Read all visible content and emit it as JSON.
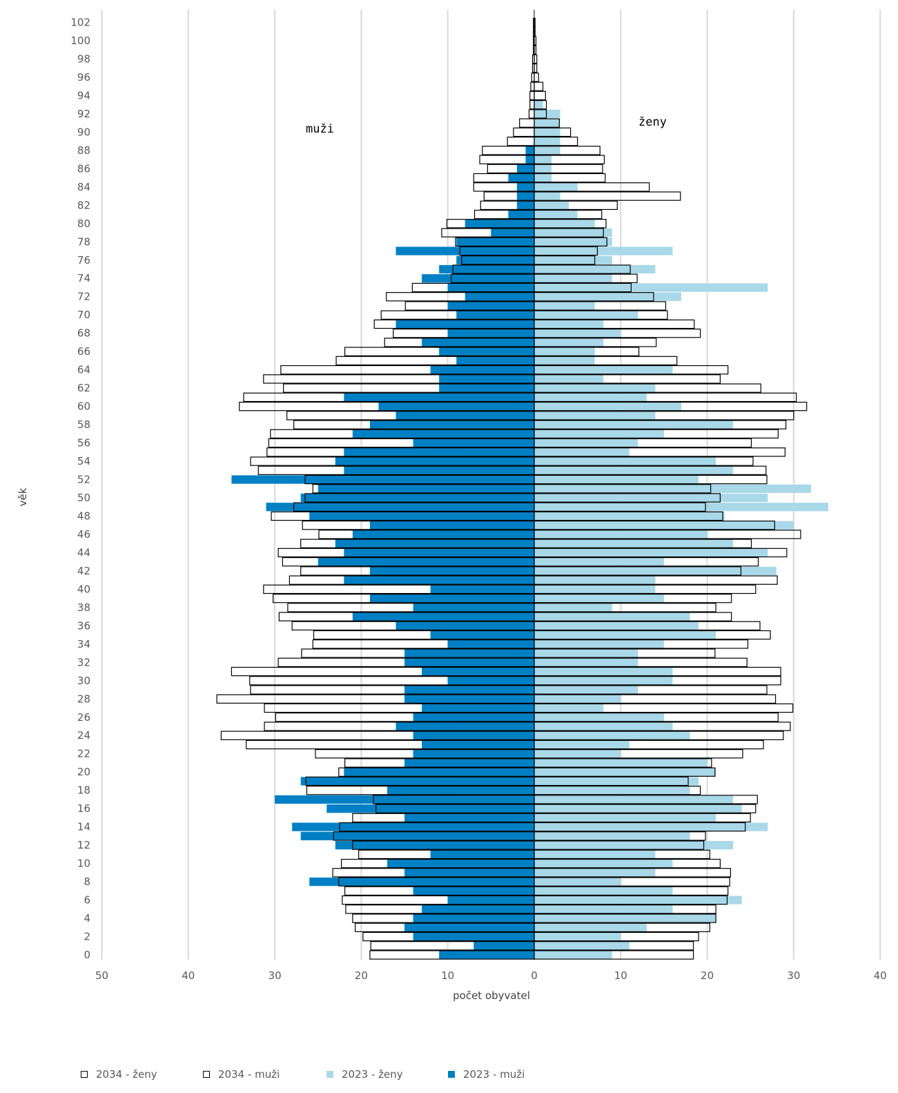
{
  "chart_data": {
    "type": "bar",
    "orientation": "population-pyramid",
    "ylabel": "věk",
    "xlabel": "počet obyvatel",
    "left_group_label": "muži",
    "right_group_label": "ženy",
    "x_ticks_left": [
      "50",
      "40",
      "30",
      "20",
      "10",
      "0"
    ],
    "x_ticks_right": [
      "10",
      "20",
      "30",
      "40"
    ],
    "xlim": [
      -50,
      40
    ],
    "grid": "vertical",
    "legend_position": "bottom",
    "ages": [
      0,
      1,
      2,
      3,
      4,
      5,
      6,
      7,
      8,
      9,
      10,
      11,
      12,
      13,
      14,
      15,
      16,
      17,
      18,
      19,
      20,
      21,
      22,
      23,
      24,
      25,
      26,
      27,
      28,
      29,
      30,
      31,
      32,
      33,
      34,
      35,
      36,
      37,
      38,
      39,
      40,
      41,
      42,
      43,
      44,
      45,
      46,
      47,
      48,
      49,
      50,
      51,
      52,
      53,
      54,
      55,
      56,
      57,
      58,
      59,
      60,
      61,
      62,
      63,
      64,
      65,
      66,
      67,
      68,
      69,
      70,
      71,
      72,
      73,
      74,
      75,
      76,
      77,
      78,
      79,
      80,
      81,
      82,
      83,
      84,
      85,
      86,
      87,
      88,
      89,
      90,
      91,
      92,
      93,
      94,
      95,
      96,
      97,
      98,
      99,
      100,
      101,
      102
    ],
    "y_tick_labels": [
      "0",
      "2",
      "4",
      "6",
      "8",
      "10",
      "12",
      "14",
      "16",
      "18",
      "20",
      "22",
      "24",
      "26",
      "28",
      "30",
      "32",
      "34",
      "36",
      "38",
      "40",
      "42",
      "44",
      "46",
      "48",
      "50",
      "52",
      "54",
      "56",
      "58",
      "60",
      "62",
      "64",
      "66",
      "68",
      "70",
      "72",
      "74",
      "76",
      "78",
      "80",
      "82",
      "84",
      "86",
      "88",
      "90",
      "92",
      "94",
      "96",
      "98",
      "100",
      "102"
    ],
    "series": [
      {
        "name": "2034 - ženy",
        "side": "right",
        "style": "outline",
        "color": "#000000",
        "values": [
          18.4,
          18.4,
          19,
          20.3,
          21,
          21,
          22.3,
          22.4,
          22.6,
          22.7,
          21.5,
          20.3,
          19.6,
          19.8,
          24.4,
          25,
          25.6,
          25.8,
          19.2,
          17.8,
          20.9,
          20.5,
          24.1,
          26.5,
          28.8,
          29.6,
          28.2,
          29.9,
          27.9,
          26.9,
          28.5,
          28.5,
          24.6,
          20.9,
          24.7,
          27.3,
          26.1,
          22.8,
          21,
          22.8,
          25.6,
          28.1,
          23.9,
          25.9,
          29.2,
          25.1,
          30.8,
          27.8,
          21.8,
          19.8,
          21.5,
          20.4,
          26.9,
          26.8,
          25.3,
          29,
          25.1,
          28.2,
          29.1,
          30,
          31.5,
          30.3,
          26.2,
          21.5,
          22.4,
          16.5,
          12.1,
          14.1,
          19.2,
          18.5,
          15.4,
          15.2,
          13.8,
          11.2,
          11.9,
          11.1,
          7,
          7.3,
          8.4,
          8,
          8.3,
          7.8,
          9.6,
          16.9,
          13.3,
          8.2,
          7.9,
          8.1,
          7.6,
          5,
          4.2,
          2.9,
          1.4,
          1.4,
          1.3,
          1,
          0.5,
          0.3,
          0.3,
          0.2,
          0.2,
          0.1,
          0.1
        ]
      },
      {
        "name": "2034 - muži",
        "side": "left",
        "style": "outline",
        "color": "#000000",
        "values": [
          19,
          18.9,
          19.8,
          20.7,
          21,
          21.8,
          22.2,
          21.9,
          22.6,
          23.3,
          22.3,
          20.3,
          21,
          23.2,
          22.5,
          21,
          18.3,
          18.6,
          26.3,
          26.4,
          22.6,
          21.9,
          25.3,
          33.3,
          36.2,
          31.2,
          29.9,
          31.2,
          36.7,
          32.8,
          32.9,
          35,
          29.6,
          26.9,
          25.6,
          25.5,
          28,
          29.5,
          28.5,
          30.2,
          31.3,
          28.3,
          27,
          29.1,
          29.6,
          27,
          24.9,
          26.8,
          30.4,
          27.8,
          26.5,
          25.6,
          26.5,
          31.9,
          32.8,
          30.9,
          30.7,
          30.5,
          27.8,
          28.6,
          34.1,
          33.6,
          29,
          31.3,
          29.3,
          22.9,
          21.9,
          17.3,
          16.3,
          18.5,
          17.7,
          14.9,
          17.1,
          14.1,
          9.6,
          9.4,
          8.4,
          8.6,
          9.1,
          10.7,
          10.1,
          6.9,
          6.2,
          5.8,
          7,
          7,
          5.4,
          6.3,
          6,
          3.1,
          2.4,
          1.7,
          0.6,
          0.5,
          0.5,
          0.4,
          0.3,
          0.2,
          0.2,
          0.1,
          0.1,
          0.1,
          0.1
        ]
      },
      {
        "name": "2023 - ženy",
        "side": "right",
        "style": "fill",
        "color": "#a9d8e8",
        "values": [
          9,
          11,
          10,
          13,
          21,
          16,
          24,
          16,
          10,
          14,
          16,
          14,
          23,
          18,
          27,
          21,
          24,
          23,
          18,
          19,
          21,
          20,
          10,
          11,
          18,
          16,
          15,
          8,
          10,
          12,
          16,
          16,
          12,
          12,
          15,
          21,
          19,
          18,
          9,
          15,
          14,
          14,
          28,
          15,
          27,
          23,
          20,
          30,
          22,
          34,
          27,
          32,
          19,
          23,
          21,
          11,
          12,
          15,
          23,
          14,
          17,
          13,
          14,
          8,
          16,
          7,
          7,
          8,
          10,
          8,
          12,
          7,
          17,
          27,
          9,
          14,
          9,
          16,
          9,
          9,
          7,
          5,
          4,
          3,
          5,
          2,
          2,
          2,
          3,
          3,
          3,
          3,
          3,
          1,
          0,
          0,
          0,
          0,
          0,
          0,
          0,
          0,
          0
        ]
      },
      {
        "name": "2023 - muži",
        "side": "left",
        "style": "fill",
        "color": "#0080c4",
        "values": [
          11,
          7,
          14,
          15,
          14,
          13,
          10,
          14,
          26,
          15,
          17,
          12,
          23,
          27,
          28,
          15,
          24,
          30,
          17,
          27,
          22,
          15,
          14,
          13,
          14,
          16,
          14,
          13,
          15,
          15,
          10,
          13,
          15,
          15,
          10,
          12,
          16,
          21,
          14,
          19,
          12,
          22,
          19,
          25,
          22,
          23,
          21,
          19,
          26,
          31,
          27,
          25,
          35,
          22,
          23,
          22,
          14,
          21,
          19,
          16,
          18,
          22,
          11,
          11,
          12,
          9,
          11,
          13,
          10,
          16,
          9,
          10,
          8,
          10,
          13,
          11,
          9,
          16,
          9,
          5,
          8,
          3,
          2,
          2,
          2,
          3,
          2,
          1,
          1,
          0,
          0,
          0,
          0,
          0,
          0,
          0,
          0,
          0,
          0,
          0,
          0,
          0,
          0
        ]
      }
    ]
  },
  "legend": [
    {
      "label": "2034 - ženy",
      "style": "outline",
      "color": "#000000"
    },
    {
      "label": "2034 - muži",
      "style": "outline",
      "color": "#000000"
    },
    {
      "label": "2023 - ženy",
      "style": "fill",
      "color": "#a9d8e8"
    },
    {
      "label": "2023 - muži",
      "style": "fill",
      "color": "#0080c4"
    }
  ]
}
